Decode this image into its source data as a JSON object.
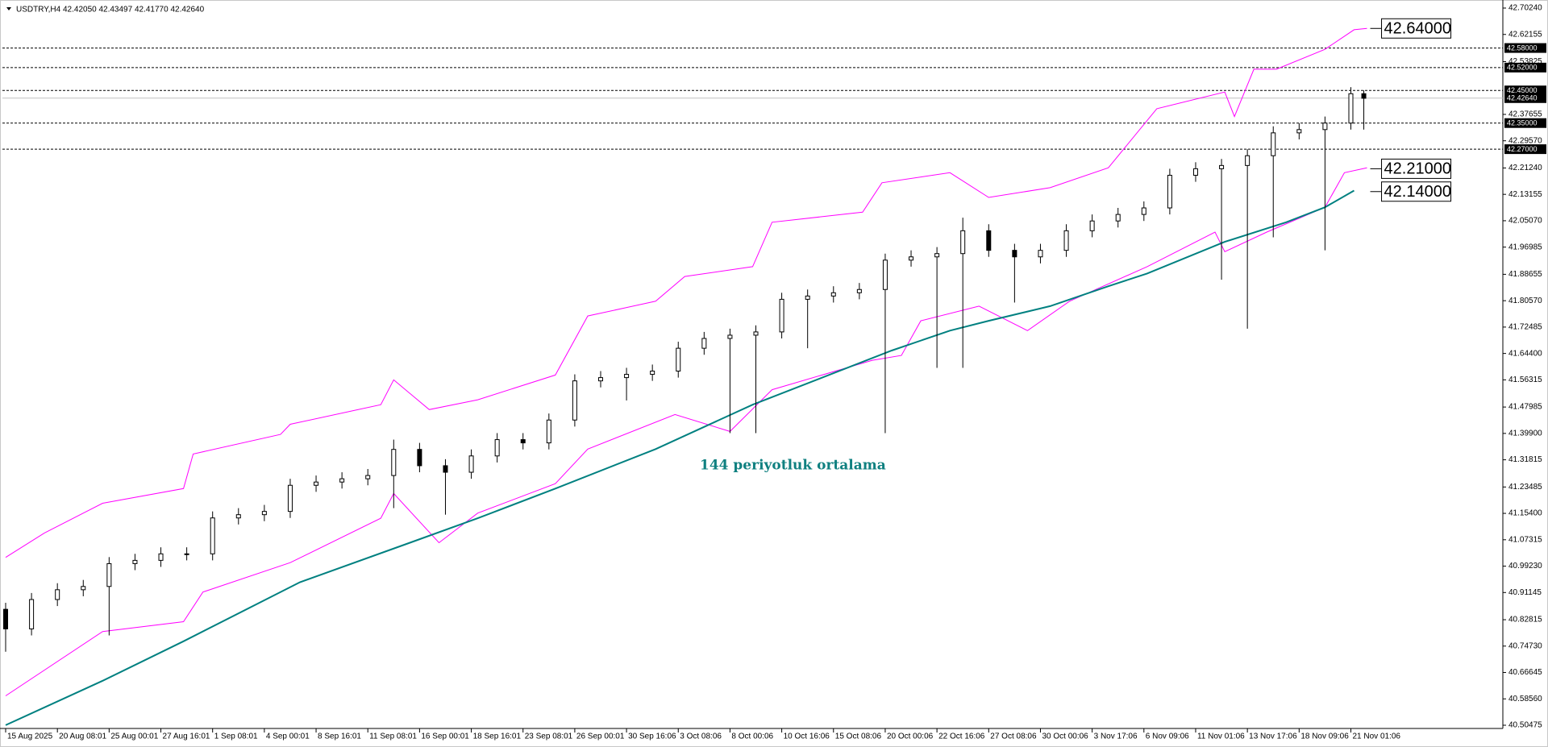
{
  "chart_data": {
    "type": "candlestick",
    "title": "USDTRY,H4  42.42050 42.43497 42.41770 42.42640",
    "annotation": "144 periyotluk ortalama",
    "candle_color": "#000000",
    "x": [
      0,
      8,
      16,
      24,
      32,
      40,
      48,
      56,
      64,
      72,
      80,
      88,
      96,
      104,
      112,
      120,
      128,
      136,
      144,
      152,
      160,
      168,
      176,
      184,
      192,
      200,
      208,
      216,
      224,
      232,
      240,
      248,
      256,
      264,
      272,
      280,
      288,
      296,
      304,
      312,
      320,
      328,
      336,
      344,
      352,
      360,
      368,
      376,
      384,
      392,
      400,
      408,
      416,
      420
    ],
    "open": [
      40.86,
      40.8,
      40.89,
      40.92,
      40.93,
      41.0,
      41.01,
      41.03,
      41.03,
      41.14,
      41.15,
      41.16,
      41.24,
      41.25,
      41.26,
      41.27,
      41.35,
      41.3,
      41.28,
      41.33,
      41.38,
      41.37,
      41.44,
      41.56,
      41.57,
      41.58,
      41.59,
      41.66,
      41.69,
      41.7,
      41.71,
      41.81,
      41.82,
      41.83,
      41.84,
      41.93,
      41.94,
      41.95,
      42.02,
      41.96,
      41.94,
      41.96,
      42.02,
      42.05,
      42.07,
      42.09,
      42.19,
      42.21,
      42.22,
      42.25,
      42.32,
      42.33,
      42.35,
      42.44
    ],
    "high": [
      40.88,
      40.91,
      40.94,
      40.95,
      41.02,
      41.03,
      41.05,
      41.05,
      41.16,
      41.17,
      41.18,
      41.26,
      41.27,
      41.28,
      41.29,
      41.38,
      41.37,
      41.32,
      41.35,
      41.4,
      41.4,
      41.46,
      41.58,
      41.59,
      41.6,
      41.61,
      41.68,
      41.71,
      41.72,
      41.73,
      41.83,
      41.84,
      41.85,
      41.86,
      41.95,
      41.96,
      41.97,
      42.06,
      42.04,
      41.98,
      41.98,
      42.04,
      42.07,
      42.09,
      42.11,
      42.21,
      42.23,
      42.24,
      42.27,
      42.34,
      42.35,
      42.37,
      42.46,
      42.45
    ],
    "low": [
      40.73,
      40.78,
      40.87,
      40.9,
      40.78,
      40.98,
      40.99,
      41.01,
      41.01,
      41.12,
      41.13,
      41.14,
      41.22,
      41.23,
      41.24,
      41.17,
      41.28,
      41.15,
      41.26,
      41.31,
      41.35,
      41.35,
      41.42,
      41.54,
      41.5,
      41.56,
      41.57,
      41.64,
      41.4,
      41.4,
      41.69,
      41.66,
      41.8,
      41.81,
      41.4,
      41.91,
      41.6,
      41.6,
      41.94,
      41.8,
      41.92,
      41.94,
      42.0,
      42.03,
      42.05,
      42.07,
      42.17,
      41.87,
      41.72,
      42.0,
      42.3,
      41.96,
      42.33,
      42.33
    ],
    "close": [
      40.8,
      40.89,
      40.92,
      40.93,
      41.0,
      41.01,
      41.03,
      41.03,
      41.14,
      41.15,
      41.16,
      41.24,
      41.25,
      41.26,
      41.27,
      41.35,
      41.3,
      41.28,
      41.33,
      41.38,
      41.37,
      41.44,
      41.56,
      41.57,
      41.58,
      41.59,
      41.66,
      41.69,
      41.7,
      41.71,
      41.81,
      41.82,
      41.83,
      41.84,
      41.93,
      41.94,
      41.95,
      42.02,
      41.96,
      41.94,
      41.96,
      42.02,
      42.05,
      42.07,
      42.09,
      42.19,
      42.21,
      42.22,
      42.25,
      42.32,
      42.33,
      42.35,
      42.44,
      42.426
    ],
    "lines": [
      {
        "color": "#ff00ff",
        "width": 1,
        "x": [
          0,
          12,
          30,
          55,
          58,
          85,
          88,
          116,
          120,
          131,
          146,
          170,
          180,
          201,
          210,
          231,
          237,
          265,
          271,
          292,
          304,
          323,
          341,
          356,
          377,
          380,
          386,
          393,
          408,
          417,
          421
        ],
        "values": [
          41.019,
          41.094,
          41.185,
          41.23,
          41.336,
          41.396,
          41.427,
          41.487,
          41.563,
          41.472,
          41.502,
          41.578,
          41.759,
          41.804,
          41.88,
          41.91,
          42.046,
          42.077,
          42.167,
          42.198,
          42.122,
          42.152,
          42.213,
          42.394,
          42.445,
          42.37,
          42.515,
          42.515,
          42.576,
          42.636,
          42.64
        ]
      },
      {
        "color": "#ff00ff",
        "width": 1,
        "x": [
          0,
          30,
          55,
          61,
          88,
          116,
          120,
          134,
          146,
          170,
          180,
          207,
          224,
          237,
          268,
          277,
          283,
          301,
          316,
          329,
          353,
          374,
          377,
          390,
          408,
          414,
          421
        ],
        "values": [
          40.595,
          40.792,
          40.822,
          40.913,
          41.003,
          41.139,
          41.215,
          41.064,
          41.155,
          41.245,
          41.351,
          41.457,
          41.405,
          41.533,
          41.623,
          41.638,
          41.744,
          41.789,
          41.714,
          41.804,
          41.91,
          42.016,
          41.956,
          42.016,
          42.092,
          42.198,
          42.213
        ]
      },
      {
        "color": "#008080",
        "width": 2,
        "x": [
          0,
          30,
          55,
          91,
          125,
          146,
          170,
          201,
          231,
          274,
          292,
          304,
          323,
          341,
          353,
          377,
          396,
          408,
          417
        ],
        "values": [
          40.505,
          40.641,
          40.762,
          40.943,
          41.064,
          41.139,
          41.23,
          41.351,
          41.487,
          41.653,
          41.714,
          41.744,
          41.789,
          41.85,
          41.889,
          41.986,
          42.046,
          42.092,
          42.143
        ]
      }
    ],
    "levels": [
      {
        "value": 42.58,
        "label": "42.58000"
      },
      {
        "value": 42.52,
        "label": "42.52000"
      },
      {
        "value": 42.45,
        "label": "42.45000"
      },
      {
        "value": 42.35,
        "label": "42.35000"
      },
      {
        "value": 42.27,
        "label": "42.27000"
      }
    ],
    "current_price": {
      "value": 42.4264,
      "label": "42.42640"
    },
    "callouts": [
      {
        "value": 42.64,
        "label": "42.64000"
      },
      {
        "value": 42.21,
        "label": "42.21000"
      },
      {
        "value": 42.14,
        "label": "42.14000"
      }
    ],
    "xlim": [
      -1,
      463
    ],
    "ylim": [
      40.50475,
      42.7024
    ],
    "grid": false,
    "xticks": [
      {
        "value": 0,
        "label": "15 Aug 2025"
      },
      {
        "value": 16,
        "label": "20 Aug 08:01"
      },
      {
        "value": 32,
        "label": "25 Aug 00:01"
      },
      {
        "value": 48,
        "label": "27 Aug 16:01"
      },
      {
        "value": 64,
        "label": "1 Sep 08:01"
      },
      {
        "value": 80,
        "label": "4 Sep 00:01"
      },
      {
        "value": 96,
        "label": "8 Sep 16:01"
      },
      {
        "value": 112,
        "label": "11 Sep 08:01"
      },
      {
        "value": 128,
        "label": "16 Sep 00:01"
      },
      {
        "value": 144,
        "label": "18 Sep 16:01"
      },
      {
        "value": 160,
        "label": "23 Sep 08:01"
      },
      {
        "value": 176,
        "label": "26 Sep 00:01"
      },
      {
        "value": 192,
        "label": "30 Sep 16:06"
      },
      {
        "value": 208,
        "label": "3 Oct 08:06"
      },
      {
        "value": 224,
        "label": "8 Oct 00:06"
      },
      {
        "value": 240,
        "label": "10 Oct 16:06"
      },
      {
        "value": 256,
        "label": "15 Oct 08:06"
      },
      {
        "value": 272,
        "label": "20 Oct 00:06"
      },
      {
        "value": 288,
        "label": "22 Oct 16:06"
      },
      {
        "value": 304,
        "label": "27 Oct 08:06"
      },
      {
        "value": 320,
        "label": "30 Oct 00:06"
      },
      {
        "value": 336,
        "label": "3 Nov 17:06"
      },
      {
        "value": 352,
        "label": "6 Nov 09:06"
      },
      {
        "value": 368,
        "label": "11 Nov 01:06"
      },
      {
        "value": 384,
        "label": "13 Nov 17:06"
      },
      {
        "value": 400,
        "label": "18 Nov 09:06"
      },
      {
        "value": 416,
        "label": "21 Nov 01:06"
      }
    ],
    "yticks": [
      {
        "value": 42.7024,
        "label": "42.70240"
      },
      {
        "value": 42.62155,
        "label": "42.62155"
      },
      {
        "value": 42.53825,
        "label": "42.53825"
      },
      {
        "value": 42.37655,
        "label": "42.37655"
      },
      {
        "value": 42.2957,
        "label": "42.29570"
      },
      {
        "value": 42.2124,
        "label": "42.21240"
      },
      {
        "value": 42.13155,
        "label": "42.13155"
      },
      {
        "value": 42.0507,
        "label": "42.05070"
      },
      {
        "value": 41.96985,
        "label": "41.96985"
      },
      {
        "value": 41.88655,
        "label": "41.88655"
      },
      {
        "value": 41.8057,
        "label": "41.80570"
      },
      {
        "value": 41.72485,
        "label": "41.72485"
      },
      {
        "value": 41.644,
        "label": "41.64400"
      },
      {
        "value": 41.56315,
        "label": "41.56315"
      },
      {
        "value": 41.47985,
        "label": "41.47985"
      },
      {
        "value": 41.399,
        "label": "41.39900"
      },
      {
        "value": 41.31815,
        "label": "41.31815"
      },
      {
        "value": 41.23485,
        "label": "41.23485"
      },
      {
        "value": 41.154,
        "label": "41.15400"
      },
      {
        "value": 41.07315,
        "label": "41.07315"
      },
      {
        "value": 40.9923,
        "label": "40.99230"
      },
      {
        "value": 40.91145,
        "label": "40.91145"
      },
      {
        "value": 40.82815,
        "label": "40.82815"
      },
      {
        "value": 40.7473,
        "label": "40.74730"
      },
      {
        "value": 40.66645,
        "label": "40.66645"
      },
      {
        "value": 40.5856,
        "label": "40.58560"
      },
      {
        "value": 40.50475,
        "label": "40.50475"
      }
    ]
  }
}
